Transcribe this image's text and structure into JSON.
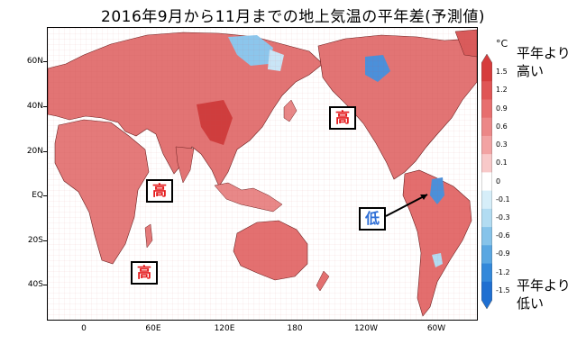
{
  "title": "2016年9月から11月までの地上気温の平年差(予測値)",
  "lat_ticks": [
    "60N",
    "40N",
    "20N",
    "EQ",
    "20S",
    "40S"
  ],
  "lon_ticks": [
    "0",
    "60E",
    "120E",
    "180",
    "120W",
    "60W"
  ],
  "regions": [
    {
      "text": "高",
      "kind": "high"
    },
    {
      "text": "高",
      "kind": "high"
    },
    {
      "text": "高",
      "kind": "high"
    },
    {
      "text": "低",
      "kind": "low"
    }
  ],
  "colorbar": {
    "unit": "°C",
    "levels": [
      "1.5",
      "1.2",
      "0.9",
      "0.6",
      "0.3",
      "0.1",
      "0",
      "-0.1",
      "-0.3",
      "-0.6",
      "-0.9",
      "-1.2",
      "-1.5"
    ],
    "colors": [
      "#d63c3c",
      "#e05555",
      "#e76e6e",
      "#ec8787",
      "#f2a3a3",
      "#f8c9c9",
      "#ffffff",
      "#d6eef9",
      "#b2dcf2",
      "#86c3ea",
      "#5aa7e2",
      "#3388da",
      "#1f6fd1"
    ],
    "warm_label_line1": "平年より",
    "warm_label_line2": "高い",
    "cold_label_line1": "平年より",
    "cold_label_line2": "低い"
  }
}
